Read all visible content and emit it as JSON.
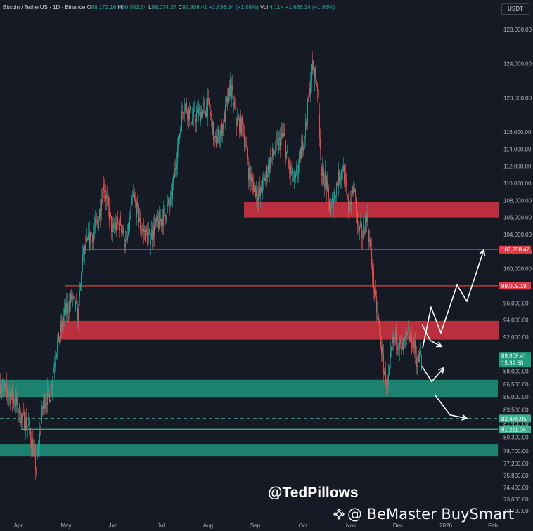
{
  "header": {
    "symbol": "Bitcoin / TetherUS · 1D · Binance",
    "o_label": "O",
    "o": "88,172.16",
    "h_label": "H",
    "h": "90,052.64",
    "l_label": "L",
    "l": "88,074.37",
    "c_label": "C",
    "c": "89,808.41",
    "change": "+1,636.24 (+1.86%)",
    "vol_label": "Vol",
    "vol": "4.11K",
    "vol_change": "+1,636.24 (+1.86%)"
  },
  "currency_button": "USDT",
  "watermark": {
    "author": "@TedPillows",
    "source": "@ BeMaster BuySmart"
  },
  "colors": {
    "background": "#161a25",
    "up": "#26a69a",
    "down": "#ef5350",
    "resistance_zone": "#c9303f",
    "support_zone": "#1e8a76",
    "level_line_red": "#e53945",
    "level_line_green": "#3bb38f",
    "axis_text": "#b2b5be"
  },
  "chart_data": {
    "type": "candlestick",
    "ylim": [
      69800,
      129600
    ],
    "y_ticks": [
      "128,000.00",
      "124,000.00",
      "120,000.00",
      "116,000.00",
      "114,000.00",
      "112,000.00",
      "110,000.00",
      "108,000.00",
      "106,000.00",
      "104,000.00",
      "102,000.00",
      "100,000.00",
      "98,000.00",
      "96,000.00",
      "94,000.00",
      "92,000.00",
      "88,000.00",
      "86,500.00",
      "85,000.00",
      "83,500.00",
      "81,900.00",
      "80,300.00",
      "78,700.00",
      "77,200.00",
      "75,800.00",
      "74,400.00",
      "73,000.00",
      "71,700.00"
    ],
    "y_tick_values": [
      128000,
      124000,
      120000,
      116000,
      114000,
      112000,
      110000,
      108000,
      106000,
      104000,
      102000,
      100000,
      98000,
      96000,
      94000,
      92000,
      88000,
      86500,
      85000,
      83500,
      81900,
      80300,
      78700,
      77200,
      75800,
      74400,
      73000,
      71700
    ],
    "x_ticks": [
      "Apr",
      "May",
      "Jun",
      "Jul",
      "Aug",
      "Sep",
      "Oct",
      "Nov",
      "Dec",
      "2026",
      "Feb"
    ],
    "x_tick_days": [
      26,
      94,
      161,
      229,
      296,
      363,
      431,
      499,
      566,
      634,
      701
    ],
    "price_labels": [
      {
        "text": "102,258.47",
        "value": 102258.47,
        "style": "red"
      },
      {
        "text": "98,009.19",
        "value": 98009.19,
        "style": "red"
      },
      {
        "text": "89,808.41",
        "sub": "15:39:58",
        "value": 89808.41,
        "style": "green"
      },
      {
        "text": "82,478.95",
        "value": 82478.95,
        "style": "green"
      },
      {
        "text": "81,211.04",
        "value": 81211.04,
        "style": "green"
      }
    ],
    "zones": [
      {
        "kind": "resistance",
        "from": 106000,
        "to": 107800,
        "x_start_day": 347
      },
      {
        "kind": "resistance",
        "from": 91700,
        "to": 93900,
        "x_start_day": 85
      },
      {
        "kind": "support",
        "from": 85000,
        "to": 87000,
        "x_start_day": 0
      },
      {
        "kind": "support",
        "from": 78100,
        "to": 79500,
        "x_start_day": 0
      }
    ],
    "levels": [
      {
        "value": 102258.47,
        "style": "red",
        "x_start_day": 118
      },
      {
        "value": 98009.19,
        "style": "red",
        "x_start_day": 92
      },
      {
        "value": 82478.95,
        "style": "green-dashed",
        "x_start_day": 0
      },
      {
        "value": 81211.04,
        "style": "green",
        "x_start_day": 30
      }
    ],
    "projection_bullish": [
      [
        601,
        90700
      ],
      [
        613,
        95500
      ],
      [
        627,
        92500
      ],
      [
        650,
        98100
      ],
      [
        664,
        96200
      ],
      [
        688,
        102200
      ]
    ],
    "projection_bearish": [
      [
        600,
        93500
      ],
      [
        612,
        91600
      ],
      [
        628,
        90900
      ],
      [
        600,
        88600
      ],
      [
        614,
        86800
      ],
      [
        631,
        88400
      ],
      [
        618,
        85300
      ],
      [
        640,
        82900
      ],
      [
        664,
        82500
      ]
    ],
    "anchors": [
      [
        0,
        86500
      ],
      [
        12,
        85500
      ],
      [
        22,
        84500
      ],
      [
        32,
        82500
      ],
      [
        42,
        81500
      ],
      [
        52,
        76500
      ],
      [
        62,
        84500
      ],
      [
        72,
        85500
      ],
      [
        80,
        90500
      ],
      [
        92,
        94500
      ],
      [
        102,
        96500
      ],
      [
        112,
        94500
      ],
      [
        118,
        101500
      ],
      [
        128,
        103500
      ],
      [
        140,
        105500
      ],
      [
        148,
        110000
      ],
      [
        160,
        104500
      ],
      [
        172,
        105500
      ],
      [
        180,
        102500
      ],
      [
        190,
        108500
      ],
      [
        200,
        105000
      ],
      [
        212,
        103500
      ],
      [
        222,
        105000
      ],
      [
        232,
        106000
      ],
      [
        244,
        108000
      ],
      [
        256,
        116000
      ],
      [
        262,
        119500
      ],
      [
        274,
        117500
      ],
      [
        288,
        118500
      ],
      [
        298,
        119000
      ],
      [
        306,
        114500
      ],
      [
        318,
        117000
      ],
      [
        328,
        121500
      ],
      [
        336,
        117500
      ],
      [
        346,
        116500
      ],
      [
        354,
        111500
      ],
      [
        362,
        109500
      ],
      [
        370,
        108500
      ],
      [
        380,
        111500
      ],
      [
        392,
        114000
      ],
      [
        404,
        115500
      ],
      [
        412,
        111500
      ],
      [
        420,
        110000
      ],
      [
        428,
        113500
      ],
      [
        436,
        117000
      ],
      [
        444,
        124000
      ],
      [
        452,
        121500
      ],
      [
        458,
        111000
      ],
      [
        464,
        110500
      ],
      [
        470,
        106500
      ],
      [
        478,
        109500
      ],
      [
        488,
        112000
      ],
      [
        496,
        107000
      ],
      [
        504,
        109500
      ],
      [
        510,
        104500
      ],
      [
        516,
        104000
      ],
      [
        522,
        106500
      ],
      [
        528,
        101500
      ],
      [
        534,
        96500
      ],
      [
        540,
        93000
      ],
      [
        546,
        88500
      ],
      [
        552,
        86000
      ],
      [
        558,
        91000
      ],
      [
        564,
        92000
      ],
      [
        572,
        90500
      ],
      [
        580,
        92000
      ],
      [
        588,
        91500
      ],
      [
        594,
        89000
      ],
      [
        598,
        89800
      ]
    ],
    "candle_count": 600,
    "open_last": 88172.16,
    "high_last": 90052.64,
    "low_last": 88074.37,
    "close_last": 89808.41
  }
}
